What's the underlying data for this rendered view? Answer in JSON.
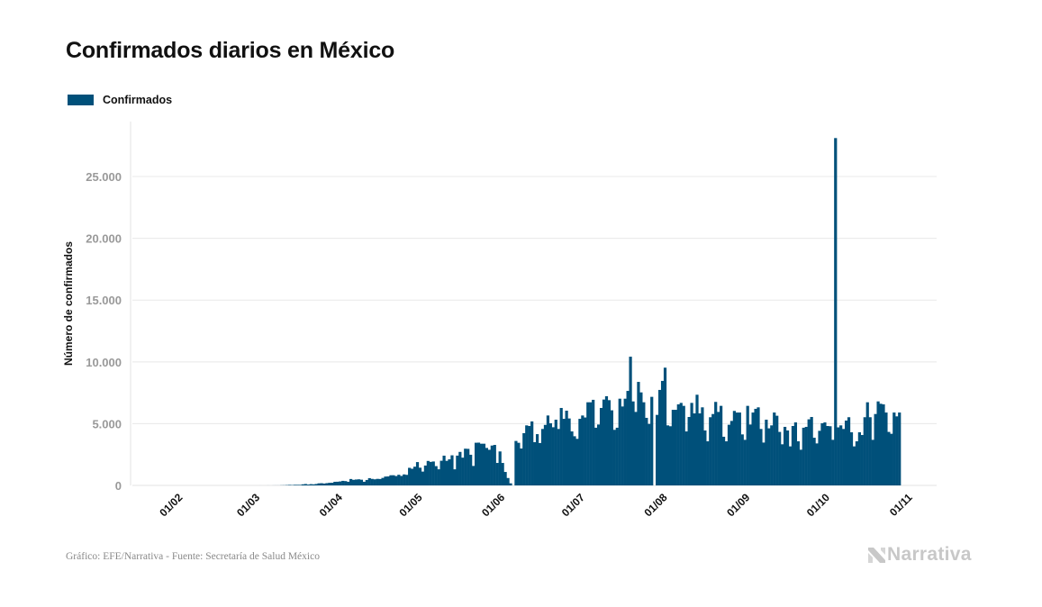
{
  "colors": {
    "bar": "#00507a",
    "grid": "#e8e8e8",
    "axis": "#e3e3e3",
    "logo": "#c8c8c8"
  },
  "logo": {
    "text": "Narrativa",
    "icon": "narrativa-n-icon"
  },
  "footer": {
    "source": "Gráfico: EFE/Narrativa - Fuente: Secretaría de Salud México"
  },
  "chart_data": {
    "type": "bar",
    "title": "Confirmados diarios en México",
    "xlabel": "",
    "ylabel": "Número de confirmados",
    "legend": {
      "placement": "top-left",
      "entries": [
        "Confirmados"
      ]
    },
    "grid": true,
    "xlim": [
      "2020-01-17",
      "2020-11-14"
    ],
    "ylim": [
      0,
      29450
    ],
    "x_ticks": [
      "01/02",
      "01/03",
      "01/04",
      "01/05",
      "01/06",
      "01/07",
      "01/08",
      "01/09",
      "01/10",
      "01/11"
    ],
    "y_ticks": [
      0,
      5000,
      10000,
      15000,
      20000,
      25000
    ],
    "y_tick_labels": [
      "0",
      "5.000",
      "10.000",
      "15.000",
      "20.000",
      "25.000"
    ],
    "x": [
      "01/03",
      "02/03",
      "03/03",
      "04/03",
      "05/03",
      "06/03",
      "07/03",
      "08/03",
      "09/03",
      "10/03",
      "11/03",
      "12/03",
      "13/03",
      "14/03",
      "15/03",
      "16/03",
      "17/03",
      "18/03",
      "19/03",
      "20/03",
      "21/03",
      "22/03",
      "23/03",
      "24/03",
      "25/03",
      "26/03",
      "27/03",
      "28/03",
      "29/03",
      "30/03",
      "31/03",
      "01/04",
      "02/04",
      "03/04",
      "04/04",
      "05/04",
      "06/04",
      "07/04",
      "08/04",
      "09/04",
      "10/04",
      "11/04",
      "12/04",
      "13/04",
      "14/04",
      "15/04",
      "16/04",
      "17/04",
      "18/04",
      "19/04",
      "20/04",
      "21/04",
      "22/04",
      "23/04",
      "24/04",
      "25/04",
      "26/04",
      "27/04",
      "28/04",
      "29/04",
      "30/04",
      "01/05",
      "02/05",
      "03/05",
      "04/05",
      "05/05",
      "06/05",
      "07/05",
      "08/05",
      "09/05",
      "10/05",
      "11/05",
      "12/05",
      "13/05",
      "14/05",
      "15/05",
      "16/05",
      "17/05",
      "18/05",
      "19/05",
      "20/05",
      "21/05",
      "22/05",
      "23/05",
      "24/05",
      "25/05",
      "26/05",
      "27/05",
      "28/05",
      "29/05",
      "30/05",
      "31/05",
      "01/06",
      "02/06",
      "03/06",
      "04/06",
      "05/06",
      "06/06",
      "07/06",
      "08/06",
      "09/06",
      "10/06",
      "11/06",
      "12/06",
      "13/06",
      "14/06",
      "15/06",
      "16/06",
      "17/06",
      "18/06",
      "19/06",
      "20/06",
      "21/06",
      "22/06",
      "23/06",
      "24/06",
      "25/06",
      "26/06",
      "27/06",
      "28/06",
      "29/06",
      "30/06",
      "01/07",
      "02/07",
      "03/07",
      "04/07",
      "05/07",
      "06/07",
      "07/07",
      "08/07",
      "09/07",
      "10/07",
      "11/07",
      "12/07",
      "13/07",
      "14/07",
      "15/07",
      "16/07",
      "17/07",
      "18/07",
      "19/07",
      "20/07",
      "21/07",
      "22/07",
      "23/07",
      "24/07",
      "25/07",
      "26/07",
      "27/07",
      "28/07",
      "29/07",
      "30/07",
      "31/07",
      "01/08",
      "02/08",
      "03/08",
      "04/08",
      "05/08",
      "06/08",
      "07/08",
      "08/08",
      "09/08",
      "10/08",
      "11/08",
      "12/08",
      "13/08",
      "14/08",
      "15/08",
      "16/08",
      "17/08",
      "18/08",
      "19/08",
      "20/08",
      "21/08",
      "22/08",
      "23/08",
      "24/08",
      "25/08",
      "26/08",
      "27/08",
      "28/08",
      "29/08",
      "30/08",
      "31/08",
      "01/09",
      "02/09",
      "03/09",
      "04/09",
      "05/09",
      "06/09",
      "07/09",
      "08/09",
      "09/09",
      "10/09",
      "11/09",
      "12/09",
      "13/09",
      "14/09",
      "15/09",
      "16/09",
      "17/09",
      "18/09",
      "19/09",
      "20/09",
      "21/09",
      "22/09",
      "23/09",
      "24/09",
      "25/09",
      "26/09",
      "27/09",
      "28/09",
      "29/09",
      "30/09",
      "01/10",
      "02/10",
      "03/10",
      "04/10",
      "05/10",
      "06/10",
      "07/10",
      "08/10",
      "09/10",
      "10/10",
      "11/10",
      "12/10",
      "13/10",
      "14/10",
      "15/10",
      "16/10",
      "17/10",
      "18/10",
      "19/10",
      "20/10",
      "21/10",
      "22/10",
      "23/10",
      "24/10",
      "25/10",
      "26/10",
      "27/10",
      "28/10",
      "29/10",
      "30/10",
      "31/10"
    ],
    "series": [
      {
        "name": "Confirmados",
        "values": [
          0,
          0,
          0,
          0,
          1,
          0,
          0,
          2,
          0,
          3,
          4,
          4,
          12,
          15,
          26,
          41,
          29,
          48,
          46,
          45,
          87,
          113,
          70,
          103,
          88,
          115,
          168,
          178,
          152,
          184,
          211,
          216,
          294,
          299,
          322,
          370,
          350,
          296,
          519,
          452,
          478,
          495,
          462,
          296,
          441,
          589,
          528,
          494,
          530,
          519,
          609,
          717,
          727,
          823,
          824,
          760,
          862,
          769,
          892,
          856,
          1424,
          1349,
          1515,
          1889,
          1434,
          1120,
          1609,
          1982,
          1906,
          1938,
          1562,
          1305,
          1997,
          2409,
          1991,
          2112,
          2437,
          1304,
          2414,
          2713,
          2248,
          2973,
          2960,
          2482,
          1577,
          3455,
          3463,
          3377,
          3377,
          3034,
          2885,
          3227,
          3280,
          1820,
          2750,
          1820,
          1090,
          600,
          170,
          0,
          3600,
          3450,
          2990,
          4230,
          4860,
          4810,
          5180,
          3500,
          4150,
          3430,
          4570,
          4900,
          5660,
          5030,
          4710,
          5320,
          4570,
          6270,
          5390,
          6050,
          5420,
          4370,
          3980,
          3770,
          5390,
          5660,
          5500,
          6730,
          6730,
          6930,
          4670,
          4930,
          6270,
          6950,
          7220,
          6900,
          6080,
          4500,
          4670,
          7020,
          6390,
          7020,
          7650,
          10420,
          6800,
          5950,
          8380,
          7530,
          6730,
          5470,
          4980,
          7170,
          0,
          5710,
          7730,
          8460,
          9530,
          4860,
          4790,
          6120,
          6120,
          6560,
          6680,
          6440,
          4370,
          5540,
          6680,
          5830,
          7340,
          5830,
          6320,
          4450,
          3570,
          5520,
          5780,
          6760,
          5950,
          6440,
          3940,
          3570,
          4910,
          5220,
          6030,
          5900,
          5900,
          4130,
          3690,
          6440,
          4930,
          5900,
          6200,
          6320,
          4570,
          3470,
          5320,
          4620,
          4860,
          5900,
          5640,
          4330,
          3330,
          4740,
          4450,
          3160,
          4810,
          5100,
          3570,
          2890,
          4670,
          4740,
          5350,
          5540,
          3860,
          3400,
          4420,
          5030,
          5100,
          4810,
          4790,
          3690,
          28115,
          4700,
          4860,
          4570,
          5250,
          5520,
          4300,
          3160,
          3570,
          4300,
          4080,
          5520,
          6730,
          5520,
          3690,
          5780,
          6800,
          6610,
          6560,
          5900,
          4330,
          4180,
          5900,
          5590,
          5900
        ]
      }
    ]
  }
}
